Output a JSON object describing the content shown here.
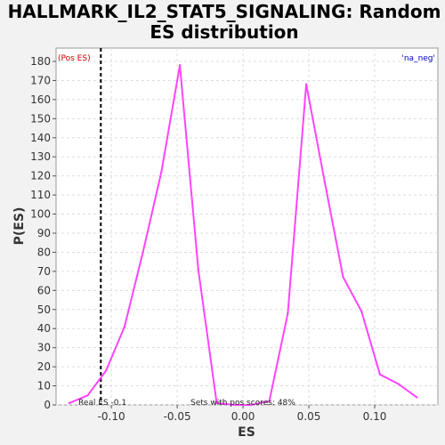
{
  "chart_data": {
    "type": "line",
    "title_lines": [
      "HALLMARK_IL2_STAT5_SIGNALING: Random",
      "ES distribution"
    ],
    "xlabel": "ES",
    "ylabel": "P(ES)",
    "xlim": [
      -0.142,
      0.148
    ],
    "ylim": [
      0,
      187
    ],
    "x_ticks": [
      -0.1,
      -0.05,
      0.0,
      0.05,
      0.1
    ],
    "x_tick_labels": [
      "-0.10",
      "-0.05",
      "0.00",
      "0.05",
      "0.10"
    ],
    "y_ticks": [
      0,
      10,
      20,
      30,
      40,
      50,
      60,
      70,
      80,
      90,
      100,
      110,
      120,
      130,
      140,
      150,
      160,
      170,
      180
    ],
    "grid": true,
    "series": [
      {
        "color": "#ff44ff",
        "x": [
          -0.132,
          -0.118,
          -0.104,
          -0.09,
          -0.076,
          -0.062,
          -0.048,
          -0.034,
          -0.02,
          -0.006,
          0.006,
          0.02,
          0.034,
          0.048,
          0.062,
          0.076,
          0.09,
          0.104,
          0.118,
          0.132
        ],
        "y": [
          1,
          5,
          18,
          41,
          80,
          122,
          178,
          71,
          1,
          0,
          0,
          2,
          48,
          168,
          117,
          67,
          49,
          16,
          11,
          4
        ]
      }
    ],
    "real_es_line": {
      "x": -0.108,
      "color": "#000000"
    },
    "corner_left": {
      "text": "(Pos ES)",
      "color": "#cc0000"
    },
    "corner_right": {
      "text": "'na_neg'",
      "color": "#0000cc"
    },
    "real_es_label": "Real ES -0.1",
    "pos_scores_label": "Sets with pos scores: 48%"
  }
}
